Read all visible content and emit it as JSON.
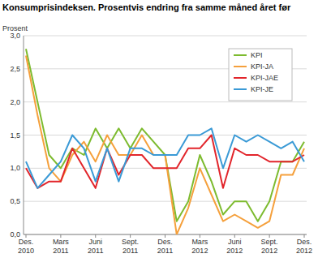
{
  "chart_data": {
    "type": "line",
    "title": "Konsumprisindeksen. Prosentvis endring fra samme måned året før",
    "y_label": "Prosent",
    "categories": [
      "Des. 2010",
      null,
      null,
      "Mars 2011",
      null,
      null,
      "Juni 2011",
      null,
      null,
      "Sept. 2011",
      null,
      null,
      "Des. 2011",
      null,
      null,
      "Mars 2012",
      null,
      null,
      "Juni 2012",
      null,
      null,
      "Sept. 2012",
      null,
      null,
      "Des. 2012"
    ],
    "series": [
      {
        "name": "KPI",
        "color": "#7dbb2f",
        "values": [
          2.8,
          2.0,
          1.2,
          1.0,
          1.3,
          1.2,
          1.6,
          1.3,
          1.6,
          1.3,
          1.6,
          1.4,
          1.2,
          0.2,
          0.5,
          1.2,
          0.8,
          0.3,
          0.5,
          0.5,
          0.2,
          0.5,
          1.1,
          1.1,
          1.4
        ]
      },
      {
        "name": "KPI-JA",
        "color": "#f5a03c",
        "values": [
          2.7,
          1.8,
          1.0,
          0.8,
          1.2,
          1.4,
          1.1,
          1.5,
          1.2,
          1.2,
          1.5,
          1.2,
          1.2,
          0.0,
          0.4,
          1.0,
          0.6,
          0.2,
          0.3,
          0.2,
          0.1,
          0.2,
          0.9,
          0.9,
          1.3
        ]
      },
      {
        "name": "KPI-JAE",
        "color": "#e2252b",
        "values": [
          1.0,
          0.7,
          0.8,
          0.8,
          1.3,
          1.0,
          0.7,
          1.3,
          0.9,
          1.2,
          1.2,
          1.0,
          1.0,
          1.0,
          1.3,
          1.3,
          1.5,
          0.7,
          1.3,
          1.2,
          1.2,
          1.1,
          1.1,
          1.1,
          1.2
        ]
      },
      {
        "name": "KPI-JE",
        "color": "#3a9ad6",
        "values": [
          1.1,
          0.7,
          0.9,
          1.1,
          1.5,
          1.3,
          0.8,
          1.3,
          0.8,
          1.3,
          1.3,
          1.2,
          1.2,
          1.2,
          1.5,
          1.5,
          1.6,
          1.0,
          1.5,
          1.4,
          1.5,
          1.4,
          1.3,
          1.4,
          1.1
        ]
      }
    ],
    "ylim": [
      0,
      3
    ],
    "yticks": [
      {
        "value": 0,
        "label": "0,0"
      },
      {
        "value": 0.5,
        "label": "0,5"
      },
      {
        "value": 1,
        "label": "1,0"
      },
      {
        "value": 1.5,
        "label": "1,5"
      },
      {
        "value": 2,
        "label": "2,0"
      },
      {
        "value": 2.5,
        "label": "2,5"
      },
      {
        "value": 3,
        "label": "3,0"
      }
    ],
    "grid": true,
    "legend": "upper right"
  }
}
